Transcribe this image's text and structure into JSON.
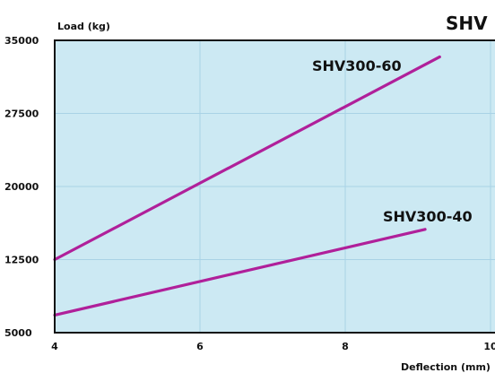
{
  "chart_data": {
    "type": "line",
    "title": "SHV",
    "xlabel": "Deflection (mm)",
    "ylabel": "Load (kg)",
    "xlim": [
      4,
      10
    ],
    "ylim": [
      5000,
      35000
    ],
    "xticks": [
      "4",
      "6",
      "8",
      "10"
    ],
    "yticks": [
      "35000",
      "27500",
      "20000",
      "12500",
      "5000"
    ],
    "grid": true,
    "series": [
      {
        "name": "SHV300-60",
        "x": [
          4,
          9.3
        ],
        "y": [
          12500,
          33300
        ],
        "color": "#b0209a"
      },
      {
        "name": "SHV300-40",
        "x": [
          4,
          9.1
        ],
        "y": [
          6800,
          15600
        ],
        "color": "#b0209a"
      }
    ],
    "colors": {
      "plot_bg": "#cce9f3",
      "grid": "#a9d2e6",
      "frame": "#111111"
    }
  }
}
